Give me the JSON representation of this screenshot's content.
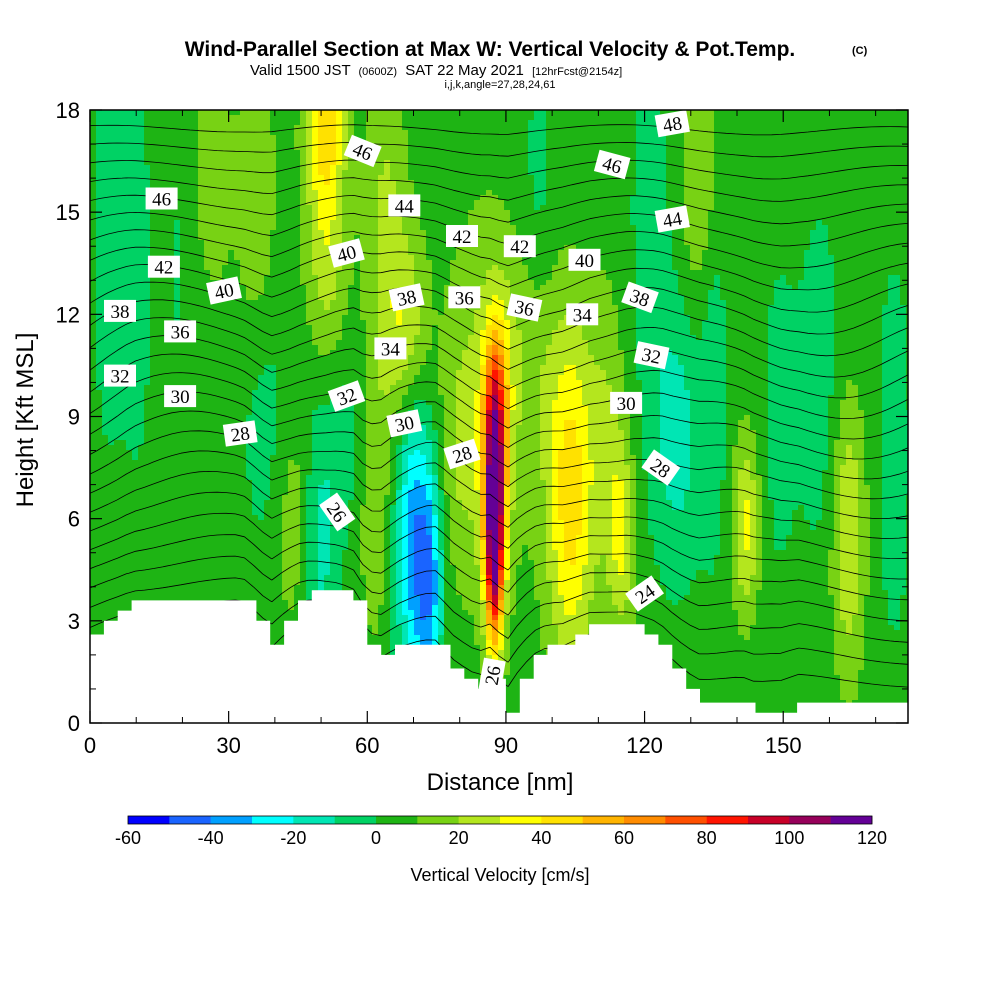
{
  "header": {
    "title": "Wind-Parallel Section at Max W: Vertical Velocity & Pot.Temp.",
    "copyright_mark": "(C)",
    "valid_prefix": "Valid 1500 JST",
    "valid_utc": "(0600Z)",
    "valid_date": "SAT 22 May 2021",
    "forecast_tag": "[12hrFcst@2154z]",
    "index_line": "i,j,k,angle=27,28,24,61"
  },
  "chart_data": {
    "type": "heatmap",
    "xlabel": "Distance [nm]",
    "ylabel": "Height [Kft MSL]",
    "xlim": [
      0,
      177
    ],
    "ylim": [
      0,
      18
    ],
    "x_ticks": [
      0,
      30,
      60,
      90,
      120,
      150
    ],
    "y_ticks": [
      0,
      3,
      6,
      9,
      12,
      15,
      18
    ],
    "colorbar": {
      "title": "Vertical Velocity [cm/s]",
      "tick_labels": [
        "-60",
        "-40",
        "-20",
        "0",
        "20",
        "40",
        "60",
        "80",
        "100",
        "120"
      ],
      "levels": [
        -60,
        -50,
        -40,
        -30,
        -20,
        -10,
        0,
        10,
        20,
        30,
        40,
        50,
        60,
        70,
        80,
        90,
        100,
        110,
        120
      ],
      "colors": [
        "#0000ff",
        "#1a64ff",
        "#00a0ff",
        "#00ffff",
        "#00e6b4",
        "#00d264",
        "#1eb414",
        "#78d214",
        "#b4e61e",
        "#ffff00",
        "#ffe100",
        "#ffb400",
        "#ff8c00",
        "#ff5000",
        "#ff1400",
        "#c80028",
        "#96005a",
        "#640096"
      ]
    },
    "background_w": 5,
    "w_features": [
      {
        "x": 4,
        "z": 15,
        "sx": 2.5,
        "sz": 5,
        "w": -12
      },
      {
        "x": 10,
        "z": 13,
        "sx": 2.5,
        "sz": 5,
        "w": -8
      },
      {
        "x": 20,
        "z": 14,
        "sx": 4,
        "sz": 5,
        "w": -6
      },
      {
        "x": 26,
        "z": 16,
        "sx": 3,
        "sz": 2.5,
        "w": 14
      },
      {
        "x": 36,
        "z": 15,
        "sx": 3,
        "sz": 3,
        "w": 14
      },
      {
        "x": 38,
        "z": 9,
        "sx": 4,
        "sz": 3,
        "w": -10
      },
      {
        "x": 44,
        "z": 6,
        "sx": 3,
        "sz": 2.5,
        "w": 12
      },
      {
        "x": 51,
        "z": 15.5,
        "sx": 3.2,
        "sz": 5,
        "w": 30
      },
      {
        "x": 51,
        "z": 17.5,
        "sx": 2.5,
        "sz": 1.2,
        "w": 18
      },
      {
        "x": 64,
        "z": 14,
        "sx": 3,
        "sz": 4,
        "w": 18
      },
      {
        "x": 69,
        "z": 11.5,
        "sx": 3,
        "sz": 2,
        "w": 24
      },
      {
        "x": 62,
        "z": 6,
        "sx": 3,
        "sz": 3,
        "w": 10
      },
      {
        "x": 50,
        "z": 6.5,
        "sx": 2.8,
        "sz": 4.2,
        "w": -22
      },
      {
        "x": 55,
        "z": 8.5,
        "sx": 2.5,
        "sz": 2.2,
        "w": -12
      },
      {
        "x": 70,
        "z": 5.5,
        "sx": 3,
        "sz": 3.2,
        "w": -40
      },
      {
        "x": 73.5,
        "z": 4,
        "sx": 2,
        "sz": 2.2,
        "w": -32
      },
      {
        "x": 80,
        "z": 8,
        "sx": 3,
        "sz": 2.5,
        "w": 10
      },
      {
        "x": 87.5,
        "z": 6.6,
        "sx": 1.7,
        "sz": 2.4,
        "w": 95
      },
      {
        "x": 87.5,
        "z": 4.5,
        "sx": 1.2,
        "sz": 1.8,
        "w": 45
      },
      {
        "x": 88,
        "z": 9.5,
        "sx": 2,
        "sz": 1.8,
        "w": 35
      },
      {
        "x": 86,
        "z": 9.5,
        "sx": 6,
        "sz": 4,
        "w": 15
      },
      {
        "x": 95,
        "z": 11,
        "sx": 5,
        "sz": 2,
        "w": 8
      },
      {
        "x": 97,
        "z": 16,
        "sx": 2.5,
        "sz": 3,
        "w": -8
      },
      {
        "x": 104,
        "z": 6,
        "sx": 3.5,
        "sz": 3.5,
        "w": 32
      },
      {
        "x": 104,
        "z": 8.5,
        "sx": 5,
        "sz": 3,
        "w": 12
      },
      {
        "x": 112,
        "z": 8.5,
        "sx": 2.5,
        "sz": 3,
        "w": 12
      },
      {
        "x": 115,
        "z": 5.5,
        "sx": 2,
        "sz": 2,
        "w": 26
      },
      {
        "x": 121,
        "z": 15,
        "sx": 3,
        "sz": 4,
        "w": -10
      },
      {
        "x": 127,
        "z": 8.5,
        "sx": 4,
        "sz": 3,
        "w": -20
      },
      {
        "x": 135,
        "z": 10.5,
        "sx": 2,
        "sz": 4,
        "w": -12
      },
      {
        "x": 132,
        "z": 16,
        "sx": 3,
        "sz": 3,
        "w": 16
      },
      {
        "x": 142,
        "z": 5.8,
        "sx": 2,
        "sz": 1.8,
        "w": 28
      },
      {
        "x": 149,
        "z": 9,
        "sx": 3,
        "sz": 4,
        "w": -8
      },
      {
        "x": 158,
        "z": 10,
        "sx": 3.5,
        "sz": 4,
        "w": -10
      },
      {
        "x": 164,
        "z": 5.5,
        "sx": 2.5,
        "sz": 2.8,
        "w": 26
      },
      {
        "x": 174,
        "z": 8,
        "sx": 2.5,
        "sz": 4,
        "w": -12
      }
    ],
    "theta_contours": {
      "surface_value": 22,
      "top_value": 50,
      "interval": 1,
      "perturbations": [
        {
          "x": 73,
          "z": 5,
          "sx": 6,
          "sz": 3.5,
          "d": -0.9
        },
        {
          "x": 55,
          "z": 10,
          "sx": 8,
          "sz": 3,
          "d": -0.5
        },
        {
          "x": 120,
          "z": 4,
          "sx": 12,
          "sz": 2.5,
          "d": -0.6
        },
        {
          "x": 88,
          "z": 9,
          "sx": 8,
          "sz": 3,
          "d": 0.8
        },
        {
          "x": 105,
          "z": 11,
          "sx": 12,
          "sz": 3,
          "d": -0.6
        },
        {
          "x": 150,
          "z": 3,
          "sx": 12,
          "sz": 2,
          "d": -0.5
        }
      ]
    },
    "contour_labels": [
      {
        "text": "46",
        "x": 15.5,
        "z": 15.4,
        "angle": 0
      },
      {
        "text": "42",
        "x": 16,
        "z": 13.4,
        "angle": 0
      },
      {
        "text": "40",
        "x": 29,
        "z": 12.7,
        "angle": -12
      },
      {
        "text": "38",
        "x": 6.5,
        "z": 12.1,
        "angle": 0
      },
      {
        "text": "36",
        "x": 19.5,
        "z": 11.5,
        "angle": 0
      },
      {
        "text": "32",
        "x": 6.5,
        "z": 10.2,
        "angle": 0
      },
      {
        "text": "30",
        "x": 19.5,
        "z": 9.6,
        "angle": 0
      },
      {
        "text": "28",
        "x": 32.5,
        "z": 8.5,
        "angle": -8
      },
      {
        "text": "46",
        "x": 59,
        "z": 16.8,
        "angle": 22
      },
      {
        "text": "44",
        "x": 68,
        "z": 15.2,
        "angle": 0
      },
      {
        "text": "40",
        "x": 55.5,
        "z": 13.8,
        "angle": -15
      },
      {
        "text": "42",
        "x": 80.5,
        "z": 14.3,
        "angle": 0
      },
      {
        "text": "42",
        "x": 93,
        "z": 14,
        "angle": 0
      },
      {
        "text": "38",
        "x": 68.5,
        "z": 12.5,
        "angle": -12
      },
      {
        "text": "36",
        "x": 81,
        "z": 12.5,
        "angle": 0
      },
      {
        "text": "36",
        "x": 94,
        "z": 12.2,
        "angle": 12
      },
      {
        "text": "34",
        "x": 65,
        "z": 11,
        "angle": 0
      },
      {
        "text": "32",
        "x": 55.5,
        "z": 9.6,
        "angle": -20
      },
      {
        "text": "30",
        "x": 68,
        "z": 8.8,
        "angle": -12
      },
      {
        "text": "28",
        "x": 80.5,
        "z": 7.9,
        "angle": -18
      },
      {
        "text": "26",
        "x": 53.5,
        "z": 6.2,
        "angle": 55
      },
      {
        "text": "26",
        "x": 87,
        "z": 1.4,
        "angle": -80
      },
      {
        "text": "46",
        "x": 113,
        "z": 16.4,
        "angle": 15
      },
      {
        "text": "48",
        "x": 126,
        "z": 17.6,
        "angle": -10
      },
      {
        "text": "44",
        "x": 126,
        "z": 14.8,
        "angle": -10
      },
      {
        "text": "40",
        "x": 107,
        "z": 13.6,
        "angle": 0
      },
      {
        "text": "34",
        "x": 106.5,
        "z": 12,
        "angle": 0
      },
      {
        "text": "38",
        "x": 119,
        "z": 12.5,
        "angle": 20
      },
      {
        "text": "32",
        "x": 121.5,
        "z": 10.8,
        "angle": 12
      },
      {
        "text": "30",
        "x": 116,
        "z": 9.4,
        "angle": 0
      },
      {
        "text": "28",
        "x": 123.5,
        "z": 7.5,
        "angle": 35
      },
      {
        "text": "24",
        "x": 120,
        "z": 3.8,
        "angle": -35
      }
    ],
    "terrain": {
      "distance": [
        0,
        3,
        6,
        9,
        12,
        15,
        18,
        21,
        24,
        27,
        30,
        33,
        36,
        39,
        42,
        45,
        48,
        51,
        54,
        57,
        60,
        63,
        66,
        69,
        72,
        75,
        78,
        81,
        84,
        87,
        90,
        93,
        96,
        99,
        102,
        105,
        108,
        111,
        114,
        117,
        120,
        123,
        126,
        129,
        132,
        135,
        138,
        141,
        144,
        147,
        150,
        153,
        156,
        159,
        162,
        165,
        168,
        171,
        174,
        177
      ],
      "height": [
        2.6,
        3.0,
        3.3,
        3.6,
        3.6,
        3.6,
        3.6,
        3.6,
        3.6,
        3.6,
        3.6,
        3.6,
        3.0,
        2.3,
        3.0,
        3.6,
        3.9,
        3.9,
        3.9,
        3.6,
        2.3,
        2.0,
        2.3,
        2.3,
        2.3,
        2.3,
        1.6,
        1.3,
        1.0,
        1.3,
        0.3,
        1.3,
        2.0,
        2.3,
        2.3,
        2.6,
        2.9,
        2.9,
        2.9,
        2.9,
        2.6,
        2.3,
        1.6,
        1.0,
        0.6,
        0.6,
        0.6,
        0.6,
        0.3,
        0.3,
        0.3,
        0.6,
        0.6,
        0.6,
        0.6,
        0.6,
        0.6,
        0.6,
        0.6,
        0.6
      ]
    }
  }
}
